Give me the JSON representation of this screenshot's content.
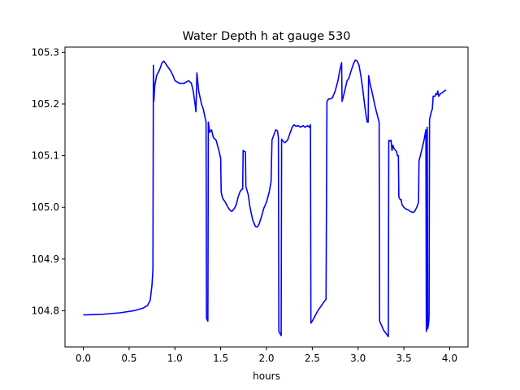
{
  "chart_data": {
    "type": "line",
    "title": "Water Depth h at gauge 530",
    "xlabel": "hours",
    "ylabel": "",
    "xlim": [
      -0.2,
      4.2
    ],
    "ylim": [
      104.73,
      105.31
    ],
    "xticks": [
      0.0,
      0.5,
      1.0,
      1.5,
      2.0,
      2.5,
      3.0,
      3.5,
      4.0
    ],
    "xtick_labels": [
      "0.0",
      "0.5",
      "1.0",
      "1.5",
      "2.0",
      "2.5",
      "3.0",
      "3.5",
      "4.0"
    ],
    "yticks": [
      104.8,
      104.9,
      105.0,
      105.1,
      105.2,
      105.3
    ],
    "ytick_labels": [
      "104.8",
      "104.9",
      "105.0",
      "105.1",
      "105.2",
      "105.3"
    ],
    "grid": false,
    "series": [
      {
        "color": "#0000ff",
        "points": [
          [
            0.0,
            104.792
          ],
          [
            0.2,
            104.793
          ],
          [
            0.4,
            104.796
          ],
          [
            0.55,
            104.8
          ],
          [
            0.65,
            104.805
          ],
          [
            0.7,
            104.81
          ],
          [
            0.73,
            104.82
          ],
          [
            0.75,
            104.85
          ],
          [
            0.76,
            104.88
          ],
          [
            0.765,
            105.275
          ],
          [
            0.77,
            105.205
          ],
          [
            0.78,
            105.235
          ],
          [
            0.8,
            105.255
          ],
          [
            0.83,
            105.265
          ],
          [
            0.86,
            105.28
          ],
          [
            0.88,
            105.283
          ],
          [
            0.91,
            105.275
          ],
          [
            0.95,
            105.265
          ],
          [
            0.98,
            105.255
          ],
          [
            1.0,
            105.245
          ],
          [
            1.05,
            105.24
          ],
          [
            1.1,
            105.24
          ],
          [
            1.15,
            105.245
          ],
          [
            1.18,
            105.24
          ],
          [
            1.2,
            105.225
          ],
          [
            1.22,
            105.2
          ],
          [
            1.23,
            105.185
          ],
          [
            1.24,
            105.26
          ],
          [
            1.26,
            105.225
          ],
          [
            1.29,
            105.2
          ],
          [
            1.31,
            105.19
          ],
          [
            1.34,
            105.165
          ],
          [
            1.345,
            104.785
          ],
          [
            1.36,
            104.78
          ],
          [
            1.365,
            105.165
          ],
          [
            1.38,
            105.145
          ],
          [
            1.4,
            105.15
          ],
          [
            1.42,
            105.135
          ],
          [
            1.45,
            105.13
          ],
          [
            1.48,
            105.11
          ],
          [
            1.5,
            105.095
          ],
          [
            1.505,
            105.03
          ],
          [
            1.52,
            105.018
          ],
          [
            1.55,
            105.01
          ],
          [
            1.58,
            105.0
          ],
          [
            1.6,
            104.995
          ],
          [
            1.62,
            104.992
          ],
          [
            1.65,
            104.998
          ],
          [
            1.67,
            105.005
          ],
          [
            1.69,
            105.02
          ],
          [
            1.71,
            105.03
          ],
          [
            1.73,
            105.035
          ],
          [
            1.74,
            105.035
          ],
          [
            1.745,
            105.11
          ],
          [
            1.77,
            105.107
          ],
          [
            1.775,
            105.04
          ],
          [
            1.8,
            105.025
          ],
          [
            1.82,
            105.0
          ],
          [
            1.85,
            104.975
          ],
          [
            1.88,
            104.963
          ],
          [
            1.9,
            104.962
          ],
          [
            1.92,
            104.968
          ],
          [
            1.95,
            104.985
          ],
          [
            1.97,
            104.998
          ],
          [
            2.0,
            105.01
          ],
          [
            2.03,
            105.03
          ],
          [
            2.05,
            105.05
          ],
          [
            2.06,
            105.13
          ],
          [
            2.08,
            105.14
          ],
          [
            2.1,
            105.15
          ],
          [
            2.12,
            105.148
          ],
          [
            2.13,
            105.135
          ],
          [
            2.135,
            104.76
          ],
          [
            2.16,
            104.752
          ],
          [
            2.165,
            105.132
          ],
          [
            2.18,
            105.128
          ],
          [
            2.2,
            105.125
          ],
          [
            2.23,
            105.13
          ],
          [
            2.25,
            105.14
          ],
          [
            2.28,
            105.155
          ],
          [
            2.3,
            105.16
          ],
          [
            2.32,
            105.157
          ],
          [
            2.35,
            105.158
          ],
          [
            2.37,
            105.155
          ],
          [
            2.4,
            105.158
          ],
          [
            2.42,
            105.155
          ],
          [
            2.45,
            105.158
          ],
          [
            2.47,
            105.155
          ],
          [
            2.48,
            105.16
          ],
          [
            2.485,
            104.776
          ],
          [
            2.5,
            104.78
          ],
          [
            2.53,
            104.79
          ],
          [
            2.56,
            104.8
          ],
          [
            2.6,
            104.81
          ],
          [
            2.63,
            104.818
          ],
          [
            2.65,
            104.822
          ],
          [
            2.66,
            105.205
          ],
          [
            2.68,
            105.21
          ],
          [
            2.7,
            105.21
          ],
          [
            2.72,
            105.212
          ],
          [
            2.75,
            105.225
          ],
          [
            2.78,
            105.245
          ],
          [
            2.8,
            105.265
          ],
          [
            2.82,
            105.28
          ],
          [
            2.825,
            105.205
          ],
          [
            2.84,
            105.215
          ],
          [
            2.86,
            105.23
          ],
          [
            2.88,
            105.245
          ],
          [
            2.9,
            105.25
          ],
          [
            2.92,
            105.262
          ],
          [
            2.95,
            105.278
          ],
          [
            2.97,
            105.285
          ],
          [
            2.99,
            105.283
          ],
          [
            3.01,
            105.275
          ],
          [
            3.03,
            105.255
          ],
          [
            3.05,
            105.23
          ],
          [
            3.07,
            105.2
          ],
          [
            3.09,
            105.175
          ],
          [
            3.1,
            105.165
          ],
          [
            3.11,
            105.165
          ],
          [
            3.115,
            105.255
          ],
          [
            3.13,
            105.24
          ],
          [
            3.15,
            105.225
          ],
          [
            3.18,
            105.2
          ],
          [
            3.2,
            105.185
          ],
          [
            3.23,
            105.165
          ],
          [
            3.235,
            104.78
          ],
          [
            3.26,
            104.77
          ],
          [
            3.28,
            104.762
          ],
          [
            3.31,
            104.755
          ],
          [
            3.33,
            104.75
          ],
          [
            3.335,
            105.13
          ],
          [
            3.35,
            105.128
          ],
          [
            3.36,
            105.13
          ],
          [
            3.37,
            105.11
          ],
          [
            3.38,
            105.12
          ],
          [
            3.39,
            105.115
          ],
          [
            3.4,
            105.112
          ],
          [
            3.42,
            105.108
          ],
          [
            3.43,
            105.1
          ],
          [
            3.44,
            105.1
          ],
          [
            3.445,
            105.02
          ],
          [
            3.46,
            105.015
          ],
          [
            3.47,
            105.015
          ],
          [
            3.48,
            105.005
          ],
          [
            3.5,
            105.0
          ],
          [
            3.52,
            104.997
          ],
          [
            3.55,
            104.995
          ],
          [
            3.57,
            104.992
          ],
          [
            3.6,
            104.99
          ],
          [
            3.62,
            104.993
          ],
          [
            3.64,
            105.0
          ],
          [
            3.66,
            105.01
          ],
          [
            3.665,
            105.09
          ],
          [
            3.68,
            105.1
          ],
          [
            3.7,
            105.115
          ],
          [
            3.72,
            105.13
          ],
          [
            3.73,
            105.14
          ],
          [
            3.74,
            105.15
          ],
          [
            3.745,
            104.76
          ],
          [
            3.75,
            104.775
          ],
          [
            3.755,
            105.155
          ],
          [
            3.76,
            104.765
          ],
          [
            3.77,
            104.775
          ],
          [
            3.775,
            104.79
          ],
          [
            3.78,
            105.17
          ],
          [
            3.8,
            105.185
          ],
          [
            3.81,
            105.19
          ],
          [
            3.82,
            105.215
          ],
          [
            3.84,
            105.215
          ],
          [
            3.85,
            105.22
          ],
          [
            3.86,
            105.218
          ],
          [
            3.87,
            105.225
          ],
          [
            3.88,
            105.215
          ],
          [
            3.9,
            105.22
          ],
          [
            3.92,
            105.222
          ],
          [
            3.94,
            105.225
          ],
          [
            3.96,
            105.227
          ]
        ]
      }
    ]
  }
}
